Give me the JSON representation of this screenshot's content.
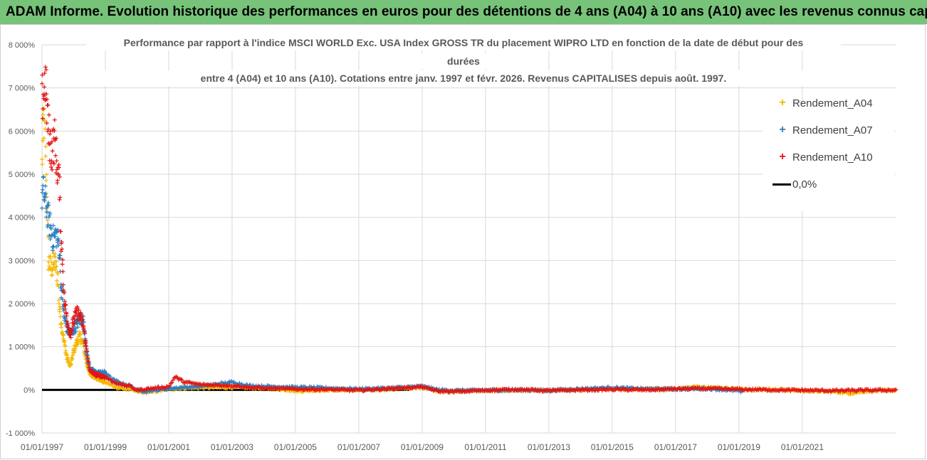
{
  "banner": {
    "title": "ADAM Informe. Evolution historique des performances en euros pour des détentions de 4 ans (A04) à 10 ans (A10) avec les revenus connus capitalisés"
  },
  "chart_data": {
    "type": "scatter",
    "title_lines": [
      "Performance par rapport à l'indice MSCI WORLD Exc. USA Index GROSS TR  du placement WIPRO LTD en fonction de la date de début pour des",
      "durées",
      "entre 4 (A04) et 10 ans (A10). Cotations entre janv. 1997 et févr.  2026. Revenus CAPITALISES depuis août. 1997."
    ],
    "ylim": [
      -1000,
      8000
    ],
    "y_ticks": [
      -1000,
      0,
      1000,
      2000,
      3000,
      4000,
      5000,
      6000,
      7000,
      8000
    ],
    "y_tick_labels": [
      "-1 000%",
      "0%",
      "1 000%",
      "2 000%",
      "3 000%",
      "4 000%",
      "5 000%",
      "6 000%",
      "7 000%",
      "8 000%"
    ],
    "xlim": [
      1997.0,
      2023.97
    ],
    "x_ticks": [
      1997,
      1999,
      2001,
      2003,
      2005,
      2007,
      2009,
      2011,
      2013,
      2015,
      2017,
      2019,
      2021
    ],
    "x_tick_labels": [
      "01/01/1997",
      "01/01/1999",
      "01/01/2001",
      "01/01/2003",
      "01/01/2005",
      "01/01/2007",
      "01/01/2009",
      "01/01/2011",
      "01/01/2013",
      "01/01/2015",
      "01/01/2017",
      "01/01/2019",
      "01/01/2021"
    ],
    "series": [
      {
        "name": "Rendement_A04",
        "color": "#f5b800",
        "x_range": [
          1997.0,
          2023.97
        ],
        "points": [
          [
            1997.0,
            5200
          ],
          [
            1997.05,
            6300
          ],
          [
            1997.1,
            5800
          ],
          [
            1997.15,
            4700
          ],
          [
            1997.2,
            3000
          ],
          [
            1997.3,
            2800
          ],
          [
            1997.4,
            3000
          ],
          [
            1997.5,
            2600
          ],
          [
            1997.55,
            1900
          ],
          [
            1997.6,
            1600
          ],
          [
            1997.7,
            1100
          ],
          [
            1997.8,
            700
          ],
          [
            1997.9,
            550
          ],
          [
            1998.0,
            900
          ],
          [
            1998.1,
            1100
          ],
          [
            1998.2,
            1250
          ],
          [
            1998.3,
            1050
          ],
          [
            1998.4,
            650
          ],
          [
            1998.5,
            380
          ],
          [
            1998.7,
            280
          ],
          [
            1999.0,
            180
          ],
          [
            1999.3,
            60
          ],
          [
            1999.6,
            30
          ],
          [
            1999.8,
            5
          ],
          [
            2000.0,
            -40
          ],
          [
            2000.3,
            -60
          ],
          [
            2000.6,
            -30
          ],
          [
            2001.0,
            20
          ],
          [
            2001.5,
            40
          ],
          [
            2002.0,
            50
          ],
          [
            2003.0,
            60
          ],
          [
            2004.0,
            40
          ],
          [
            2004.8,
            0
          ],
          [
            2005.0,
            -30
          ],
          [
            2006.0,
            0
          ],
          [
            2007.0,
            -10
          ],
          [
            2008.0,
            20
          ],
          [
            2009.0,
            60
          ],
          [
            2009.5,
            -20
          ],
          [
            2010.0,
            -40
          ],
          [
            2011.0,
            -20
          ],
          [
            2012.0,
            -10
          ],
          [
            2013.0,
            -20
          ],
          [
            2014.0,
            0
          ],
          [
            2015.0,
            20
          ],
          [
            2016.0,
            10
          ],
          [
            2017.0,
            30
          ],
          [
            2017.6,
            70
          ],
          [
            2018.0,
            60
          ],
          [
            2019.0,
            20
          ],
          [
            2020.0,
            10
          ],
          [
            2021.0,
            -20
          ],
          [
            2022.0,
            -40
          ],
          [
            2022.5,
            -80
          ],
          [
            2023.0,
            -30
          ],
          [
            2023.97,
            -10
          ]
        ]
      },
      {
        "name": "Rendement_A07",
        "color": "#2b7fc0",
        "x_range": [
          1997.0,
          2019.1
        ],
        "points": [
          [
            1997.0,
            4500
          ],
          [
            1997.05,
            4600
          ],
          [
            1997.15,
            4200
          ],
          [
            1997.25,
            3800
          ],
          [
            1997.35,
            3500
          ],
          [
            1997.45,
            3600
          ],
          [
            1997.55,
            3300
          ],
          [
            1997.6,
            2400
          ],
          [
            1997.65,
            2100
          ],
          [
            1997.7,
            1700
          ],
          [
            1997.8,
            1400
          ],
          [
            1997.9,
            1300
          ],
          [
            1998.0,
            1400
          ],
          [
            1998.2,
            1650
          ],
          [
            1998.3,
            1600
          ],
          [
            1998.4,
            900
          ],
          [
            1998.5,
            500
          ],
          [
            1998.7,
            400
          ],
          [
            1999.0,
            400
          ],
          [
            1999.2,
            250
          ],
          [
            1999.5,
            150
          ],
          [
            1999.8,
            90
          ],
          [
            2000.0,
            -10
          ],
          [
            2000.3,
            -30
          ],
          [
            2000.8,
            10
          ],
          [
            2001.0,
            30
          ],
          [
            2001.5,
            60
          ],
          [
            2002.0,
            80
          ],
          [
            2003.0,
            180
          ],
          [
            2003.5,
            100
          ],
          [
            2004.0,
            80
          ],
          [
            2005.0,
            60
          ],
          [
            2006.0,
            40
          ],
          [
            2007.0,
            20
          ],
          [
            2008.0,
            40
          ],
          [
            2009.0,
            80
          ],
          [
            2009.5,
            0
          ],
          [
            2010.0,
            -20
          ],
          [
            2011.0,
            -10
          ],
          [
            2012.0,
            0
          ],
          [
            2013.0,
            -10
          ],
          [
            2014.0,
            20
          ],
          [
            2015.0,
            50
          ],
          [
            2016.0,
            20
          ],
          [
            2017.0,
            20
          ],
          [
            2018.0,
            30
          ],
          [
            2019.0,
            -20
          ],
          [
            2019.1,
            -60
          ]
        ]
      },
      {
        "name": "Rendement_A10",
        "color": "#e01515",
        "x_range": [
          1997.0,
          2023.97
        ],
        "points": [
          [
            1997.0,
            6700
          ],
          [
            1997.05,
            6900
          ],
          [
            1997.1,
            7200
          ],
          [
            1997.2,
            6000
          ],
          [
            1997.3,
            5500
          ],
          [
            1997.4,
            5800
          ],
          [
            1997.5,
            5000
          ],
          [
            1997.55,
            4800
          ],
          [
            1997.6,
            3500
          ],
          [
            1997.65,
            3000
          ],
          [
            1997.7,
            2100
          ],
          [
            1997.8,
            1600
          ],
          [
            1997.9,
            1300
          ],
          [
            1998.0,
            1600
          ],
          [
            1998.1,
            1800
          ],
          [
            1998.2,
            1700
          ],
          [
            1998.3,
            1500
          ],
          [
            1998.4,
            1000
          ],
          [
            1998.5,
            450
          ],
          [
            1998.7,
            350
          ],
          [
            1999.0,
            300
          ],
          [
            1999.2,
            200
          ],
          [
            1999.5,
            120
          ],
          [
            1999.8,
            80
          ],
          [
            2000.0,
            -10
          ],
          [
            2000.3,
            20
          ],
          [
            2000.8,
            60
          ],
          [
            2001.0,
            70
          ],
          [
            2001.2,
            300
          ],
          [
            2001.5,
            180
          ],
          [
            2002.0,
            120
          ],
          [
            2003.0,
            100
          ],
          [
            2003.5,
            60
          ],
          [
            2004.0,
            40
          ],
          [
            2005.0,
            20
          ],
          [
            2006.0,
            10
          ],
          [
            2007.0,
            -10
          ],
          [
            2008.0,
            30
          ],
          [
            2009.0,
            70
          ],
          [
            2009.5,
            -30
          ],
          [
            2010.0,
            -40
          ],
          [
            2011.0,
            -10
          ],
          [
            2012.0,
            10
          ],
          [
            2013.0,
            -20
          ],
          [
            2014.0,
            0
          ],
          [
            2015.0,
            10
          ],
          [
            2016.0,
            0
          ],
          [
            2017.0,
            20
          ],
          [
            2018.0,
            30
          ],
          [
            2019.0,
            10
          ],
          [
            2020.0,
            0
          ],
          [
            2021.0,
            -10
          ],
          [
            2022.0,
            -20
          ],
          [
            2023.0,
            -10
          ],
          [
            2023.97,
            -5
          ]
        ]
      }
    ],
    "reference_line": {
      "name": "0,0%",
      "value": 0,
      "color": "#000000"
    },
    "legend": [
      "Rendement_A04",
      "Rendement_A07",
      "Rendement_A10",
      "0,0%"
    ],
    "legend_position": "top-right",
    "grid": true,
    "marker": "+"
  }
}
